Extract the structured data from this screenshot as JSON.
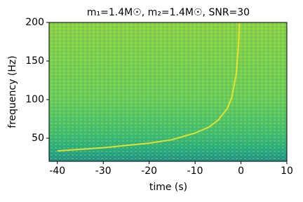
{
  "chart_data": {
    "type": "spectrogram",
    "title": "m₁=1.4M☉, m₂=1.4M☉, SNR=30",
    "x_label": "time (s)",
    "y_label": "frequency (Hz)",
    "xlim": [
      -41.8,
      10
    ],
    "xticks": [
      -40,
      -30,
      -20,
      -10,
      0,
      10
    ],
    "ylim": [
      20,
      200
    ],
    "yticks": [
      50,
      100,
      150,
      200
    ],
    "series": [
      {
        "color": "#fde725",
        "x": [
          -40,
          -30,
          -20,
          -15,
          -10,
          -7,
          -5,
          -3,
          -2,
          -1,
          -0.5,
          -0.35
        ],
        "values": [
          33.5,
          37.6,
          43.5,
          48.0,
          56.6,
          64.3,
          73.3,
          88.2,
          103,
          134,
          174,
          199
        ]
      }
    ]
  }
}
